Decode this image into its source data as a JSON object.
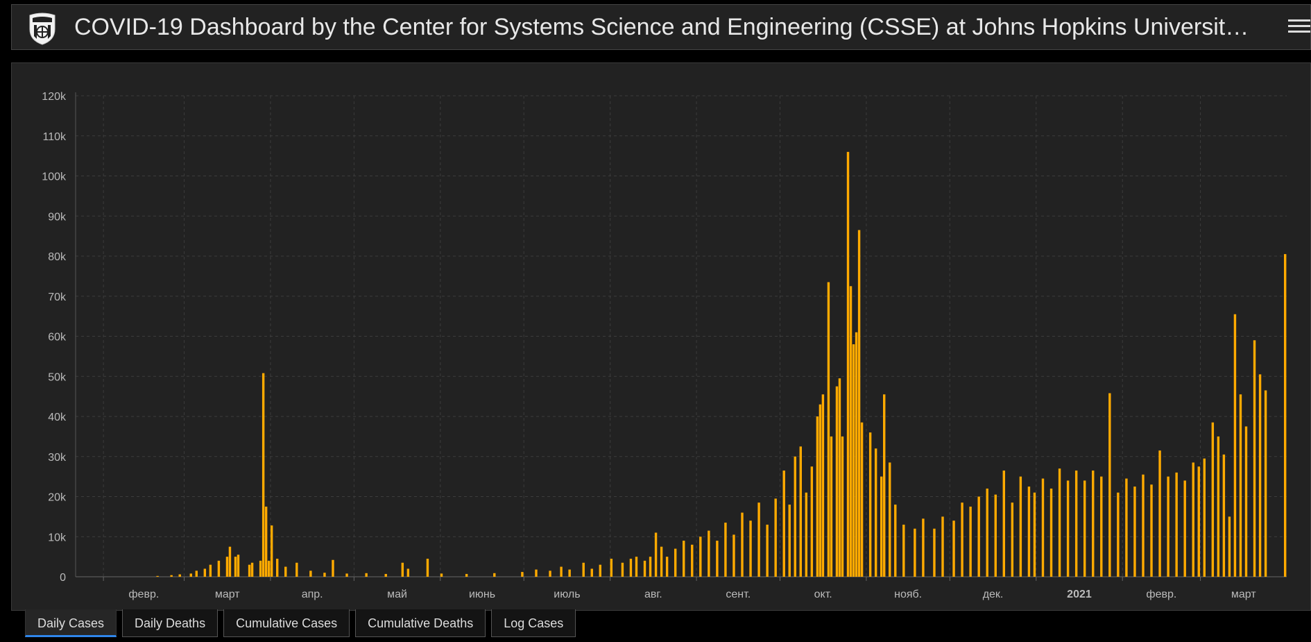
{
  "header": {
    "title": "COVID-19 Dashboard by the Center for Systems Science and Engineering (CSSE) at Johns Hopkins University (JHU)",
    "logo_icon": "jhu-shield-icon",
    "menu_icon": "hamburger-menu-icon"
  },
  "tabs": [
    {
      "label": "Daily Cases",
      "active": true
    },
    {
      "label": "Daily Deaths",
      "active": false
    },
    {
      "label": "Cumulative Cases",
      "active": false
    },
    {
      "label": "Cumulative Deaths",
      "active": false
    },
    {
      "label": "Log Cases",
      "active": false
    }
  ],
  "colors": {
    "bar": "#ffaa00",
    "background": "#222222",
    "grid": "#3c3c3c",
    "text": "#bbbbbb"
  },
  "chart_data": {
    "type": "bar",
    "title": "",
    "xlabel": "",
    "ylabel": "",
    "ylim": [
      0,
      120000
    ],
    "yticks": [
      "0",
      "10k",
      "20k",
      "30k",
      "40k",
      "50k",
      "60k",
      "70k",
      "80k",
      "90k",
      "100k",
      "110k",
      "120k"
    ],
    "grid": true,
    "xticks": [
      "февр.",
      "март",
      "апр.",
      "май",
      "июнь",
      "июль",
      "авг.",
      "сент.",
      "окт.",
      "нояб.",
      "дек.",
      "2021",
      "февр.",
      "март"
    ],
    "x_start": "2020-01-22",
    "x_end": "2021-03-31",
    "series": [
      {
        "name": "",
        "points": [
          [
            "2020-01-22",
            0
          ],
          [
            "2020-02-15",
            0
          ],
          [
            "2020-02-20",
            200
          ],
          [
            "2020-02-25",
            400
          ],
          [
            "2020-02-28",
            600
          ],
          [
            "2020-03-03",
            800
          ],
          [
            "2020-03-05",
            1500
          ],
          [
            "2020-03-08",
            2000
          ],
          [
            "2020-03-10",
            3000
          ],
          [
            "2020-03-13",
            4000
          ],
          [
            "2020-03-16",
            5000
          ],
          [
            "2020-03-17",
            7500
          ],
          [
            "2020-03-19",
            5000
          ],
          [
            "2020-03-20",
            5500
          ],
          [
            "2020-03-24",
            3000
          ],
          [
            "2020-03-25",
            3500
          ],
          [
            "2020-03-28",
            4000
          ],
          [
            "2020-03-29",
            50800
          ],
          [
            "2020-03-30",
            17500
          ],
          [
            "2020-03-31",
            4000
          ],
          [
            "2020-04-01",
            12800
          ],
          [
            "2020-04-03",
            4500
          ],
          [
            "2020-04-06",
            2500
          ],
          [
            "2020-04-10",
            3500
          ],
          [
            "2020-04-15",
            1500
          ],
          [
            "2020-04-20",
            1000
          ],
          [
            "2020-04-23",
            4200
          ],
          [
            "2020-04-28",
            800
          ],
          [
            "2020-05-05",
            900
          ],
          [
            "2020-05-12",
            700
          ],
          [
            "2020-05-18",
            3500
          ],
          [
            "2020-05-20",
            2000
          ],
          [
            "2020-05-27",
            4500
          ],
          [
            "2020-06-01",
            800
          ],
          [
            "2020-06-10",
            700
          ],
          [
            "2020-06-20",
            900
          ],
          [
            "2020-06-30",
            1200
          ],
          [
            "2020-07-05",
            1800
          ],
          [
            "2020-07-10",
            1500
          ],
          [
            "2020-07-14",
            2500
          ],
          [
            "2020-07-17",
            1800
          ],
          [
            "2020-07-22",
            3500
          ],
          [
            "2020-07-25",
            2000
          ],
          [
            "2020-07-28",
            3000
          ],
          [
            "2020-08-01",
            4500
          ],
          [
            "2020-08-05",
            3500
          ],
          [
            "2020-08-08",
            4500
          ],
          [
            "2020-08-10",
            5000
          ],
          [
            "2020-08-13",
            4000
          ],
          [
            "2020-08-15",
            5000
          ],
          [
            "2020-08-17",
            11000
          ],
          [
            "2020-08-19",
            7500
          ],
          [
            "2020-08-21",
            5000
          ],
          [
            "2020-08-24",
            7000
          ],
          [
            "2020-08-27",
            9000
          ],
          [
            "2020-08-30",
            8000
          ],
          [
            "2020-09-02",
            10000
          ],
          [
            "2020-09-05",
            11500
          ],
          [
            "2020-09-08",
            9000
          ],
          [
            "2020-09-11",
            13500
          ],
          [
            "2020-09-14",
            10500
          ],
          [
            "2020-09-17",
            16000
          ],
          [
            "2020-09-20",
            14000
          ],
          [
            "2020-09-23",
            18500
          ],
          [
            "2020-09-26",
            13000
          ],
          [
            "2020-09-29",
            19500
          ],
          [
            "2020-10-02",
            26500
          ],
          [
            "2020-10-04",
            18000
          ],
          [
            "2020-10-06",
            30000
          ],
          [
            "2020-10-08",
            32500
          ],
          [
            "2020-10-10",
            21000
          ],
          [
            "2020-10-12",
            27500
          ],
          [
            "2020-10-14",
            40000
          ],
          [
            "2020-10-15",
            43000
          ],
          [
            "2020-10-16",
            45500
          ],
          [
            "2020-10-18",
            73500
          ],
          [
            "2020-10-19",
            35000
          ],
          [
            "2020-10-21",
            47500
          ],
          [
            "2020-10-22",
            49500
          ],
          [
            "2020-10-23",
            35000
          ],
          [
            "2020-10-25",
            106000
          ],
          [
            "2020-10-26",
            72500
          ],
          [
            "2020-10-27",
            58000
          ],
          [
            "2020-10-28",
            61000
          ],
          [
            "2020-10-29",
            86500
          ],
          [
            "2020-10-30",
            38500
          ],
          [
            "2020-11-02",
            36000
          ],
          [
            "2020-11-04",
            32000
          ],
          [
            "2020-11-06",
            25000
          ],
          [
            "2020-11-07",
            45500
          ],
          [
            "2020-11-09",
            28500
          ],
          [
            "2020-11-11",
            18000
          ],
          [
            "2020-11-14",
            13000
          ],
          [
            "2020-11-18",
            12000
          ],
          [
            "2020-11-21",
            14500
          ],
          [
            "2020-11-25",
            12000
          ],
          [
            "2020-11-28",
            15000
          ],
          [
            "2020-12-02",
            14000
          ],
          [
            "2020-12-05",
            18500
          ],
          [
            "2020-12-08",
            17500
          ],
          [
            "2020-12-11",
            20000
          ],
          [
            "2020-12-14",
            22000
          ],
          [
            "2020-12-17",
            20500
          ],
          [
            "2020-12-20",
            26500
          ],
          [
            "2020-12-23",
            18500
          ],
          [
            "2020-12-26",
            25000
          ],
          [
            "2020-12-29",
            22500
          ],
          [
            "2020-12-31",
            21000
          ],
          [
            "2021-01-03",
            24500
          ],
          [
            "2021-01-06",
            22000
          ],
          [
            "2021-01-09",
            27000
          ],
          [
            "2021-01-12",
            24000
          ],
          [
            "2021-01-15",
            26500
          ],
          [
            "2021-01-18",
            24000
          ],
          [
            "2021-01-21",
            26500
          ],
          [
            "2021-01-24",
            25000
          ],
          [
            "2021-01-27",
            45800
          ],
          [
            "2021-01-30",
            21000
          ],
          [
            "2021-02-02",
            24500
          ],
          [
            "2021-02-05",
            22500
          ],
          [
            "2021-02-08",
            25500
          ],
          [
            "2021-02-11",
            23000
          ],
          [
            "2021-02-14",
            31500
          ],
          [
            "2021-02-17",
            25000
          ],
          [
            "2021-02-20",
            26000
          ],
          [
            "2021-02-23",
            24000
          ],
          [
            "2021-02-26",
            28500
          ],
          [
            "2021-02-28",
            27500
          ],
          [
            "2021-03-02",
            29500
          ],
          [
            "2021-03-05",
            38500
          ],
          [
            "2021-03-07",
            35000
          ],
          [
            "2021-03-09",
            30500
          ],
          [
            "2021-03-11",
            15000
          ],
          [
            "2021-03-13",
            65500
          ],
          [
            "2021-03-15",
            45500
          ],
          [
            "2021-03-17",
            37500
          ],
          [
            "2021-03-20",
            59000
          ],
          [
            "2021-03-22",
            50500
          ],
          [
            "2021-03-24",
            46500
          ],
          [
            "2021-03-31",
            80500
          ]
        ]
      }
    ]
  }
}
